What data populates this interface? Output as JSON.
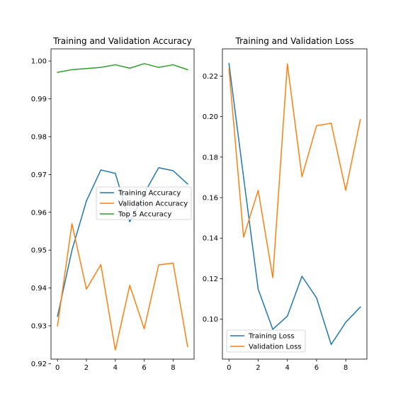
{
  "chart_data": [
    {
      "type": "line",
      "title": "Training and Validation Accuracy",
      "xlabel": "",
      "ylabel": "",
      "x": [
        0,
        1,
        2,
        3,
        4,
        5,
        6,
        7,
        8,
        9
      ],
      "xlim": [
        -0.45,
        9.45
      ],
      "ylim": [
        0.9212,
        1.0032
      ],
      "xticks": [
        0,
        2,
        4,
        6,
        8
      ],
      "yticks": [
        0.92,
        0.93,
        0.94,
        0.95,
        0.96,
        0.97,
        0.98,
        0.99,
        1.0
      ],
      "ytick_labels": [
        "0.92",
        "0.93",
        "0.94",
        "0.95",
        "0.96",
        "0.97",
        "0.98",
        "0.99",
        "1.00"
      ],
      "legend_position": "center-right",
      "series": [
        {
          "name": "Training Accuracy",
          "color": "#1f77b4",
          "values": [
            0.9325,
            0.95,
            0.963,
            0.9712,
            0.9703,
            0.9575,
            0.965,
            0.9718,
            0.971,
            0.9675
          ]
        },
        {
          "name": "Validation Accuracy",
          "color": "#ff7f0e",
          "values": [
            0.93,
            0.957,
            0.9397,
            0.9462,
            0.9236,
            0.9407,
            0.9292,
            0.9461,
            0.9466,
            0.9245
          ]
        },
        {
          "name": "Top 5 Accuracy",
          "color": "#2ca02c",
          "values": [
            0.997,
            0.9977,
            0.998,
            0.9983,
            0.999,
            0.9981,
            0.9993,
            0.9983,
            0.999,
            0.9977
          ]
        }
      ]
    },
    {
      "type": "line",
      "title": "Training and Validation Loss",
      "xlabel": "",
      "ylabel": "",
      "x": [
        0,
        1,
        2,
        3,
        4,
        5,
        6,
        7,
        8,
        9
      ],
      "xlim": [
        -0.45,
        9.45
      ],
      "ylim": [
        0.0803,
        0.2334
      ],
      "xticks": [
        0,
        2,
        4,
        6,
        8
      ],
      "yticks": [
        0.1,
        0.12,
        0.14,
        0.16,
        0.18,
        0.2,
        0.22
      ],
      "ytick_labels": [
        "0.10",
        "0.12",
        "0.14",
        "0.16",
        "0.18",
        "0.20",
        "0.22"
      ],
      "legend_position": "lower-left",
      "series": [
        {
          "name": "Training Loss",
          "color": "#1f77b4",
          "values": [
            0.2262,
            0.17,
            0.1148,
            0.095,
            0.1015,
            0.1212,
            0.1105,
            0.0875,
            0.0985,
            0.106
          ]
        },
        {
          "name": "Validation Loss",
          "color": "#ff7f0e",
          "values": [
            0.2235,
            0.1405,
            0.1636,
            0.1205,
            0.226,
            0.1703,
            0.1955,
            0.1967,
            0.1636,
            0.1985
          ]
        }
      ]
    }
  ]
}
